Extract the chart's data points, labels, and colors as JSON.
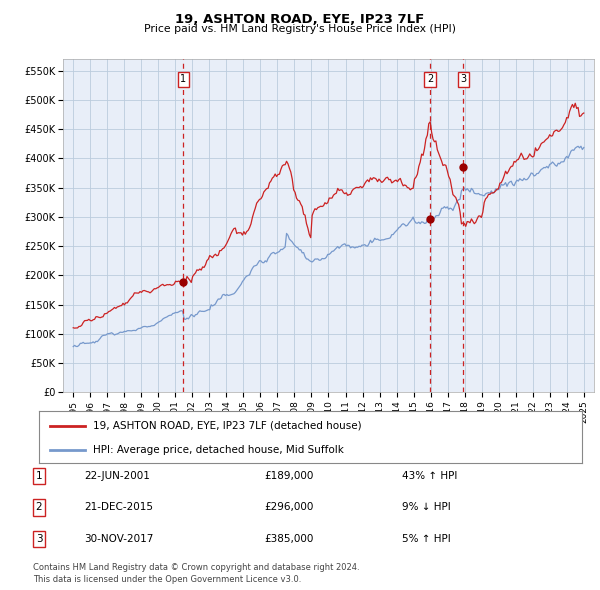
{
  "title": "19, ASHTON ROAD, EYE, IP23 7LF",
  "subtitle": "Price paid vs. HM Land Registry's House Price Index (HPI)",
  "ylabel_ticks": [
    "£0",
    "£50K",
    "£100K",
    "£150K",
    "£200K",
    "£250K",
    "£300K",
    "£350K",
    "£400K",
    "£450K",
    "£500K",
    "£550K"
  ],
  "ytick_values": [
    0,
    50000,
    100000,
    150000,
    200000,
    250000,
    300000,
    350000,
    400000,
    450000,
    500000,
    550000
  ],
  "ylim": [
    0,
    570000
  ],
  "legend_line1": "19, ASHTON ROAD, EYE, IP23 7LF (detached house)",
  "legend_line2": "HPI: Average price, detached house, Mid Suffolk",
  "transactions": [
    {
      "num": 1,
      "date": "22-JUN-2001",
      "price": 189000,
      "pct": "43%",
      "dir": "↑",
      "year": 2001.47
    },
    {
      "num": 2,
      "date": "21-DEC-2015",
      "price": 296000,
      "pct": "9%",
      "dir": "↓",
      "year": 2015.97
    },
    {
      "num": 3,
      "date": "30-NOV-2017",
      "price": 385000,
      "pct": "5%",
      "dir": "↑",
      "year": 2017.92
    }
  ],
  "footnote1": "Contains HM Land Registry data © Crown copyright and database right 2024.",
  "footnote2": "This data is licensed under the Open Government Licence v3.0.",
  "red_color": "#cc2222",
  "blue_color": "#7799cc",
  "dot_color": "#990000",
  "vline_color": "#cc2222",
  "chart_bg": "#e8eef8",
  "background_color": "#ffffff",
  "grid_color": "#bbccdd"
}
